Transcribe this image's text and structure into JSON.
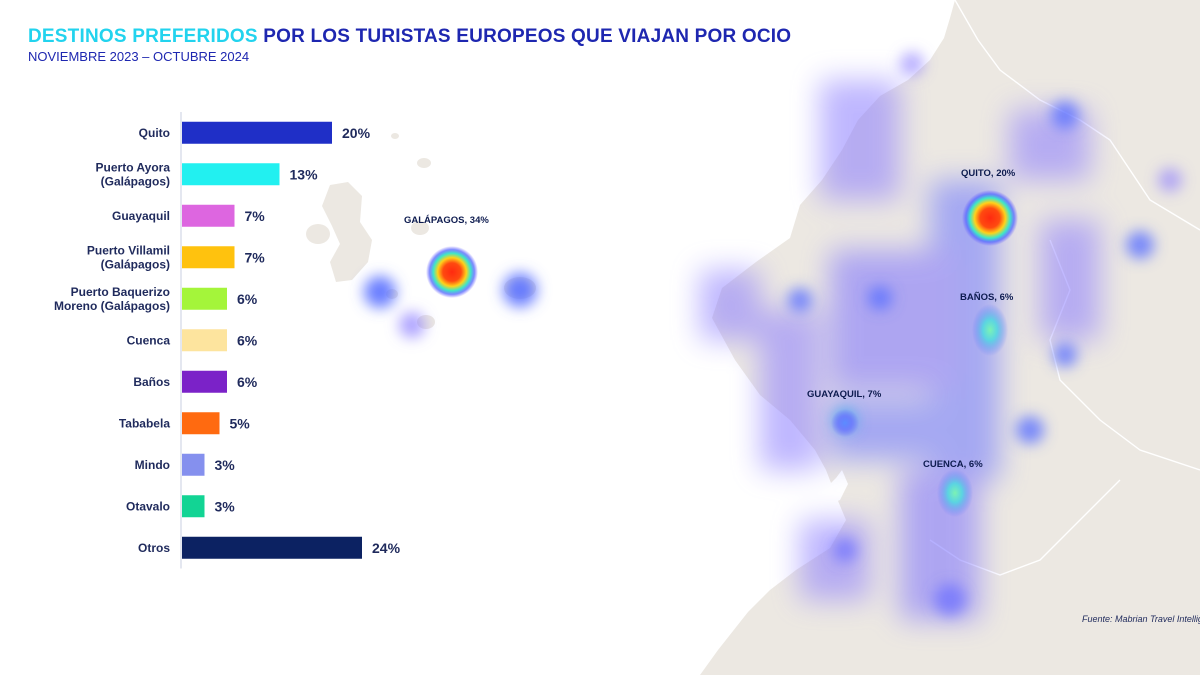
{
  "title": {
    "highlight": "DESTINOS PREFERIDOS",
    "rest": "POR LOS TURISTAS EUROPEOS QUE VIAJAN POR OCIO"
  },
  "subtitle": "NOVIEMBRE 2023 – OCTUBRE 2024",
  "colors": {
    "title_highlight": "#22d3ee",
    "title_main": "#1e27b0",
    "label_text": "#1f2a5c",
    "land": "#ece8e2"
  },
  "chart_data": {
    "type": "bar",
    "orientation": "horizontal",
    "categories": [
      [
        "Quito"
      ],
      [
        "Puerto Ayora",
        "(Galápagos)"
      ],
      [
        "Guayaquil"
      ],
      [
        "Puerto Villamil",
        "(Galápagos)"
      ],
      [
        "Puerto Baquerizo",
        "Moreno (Galápagos)"
      ],
      [
        "Cuenca"
      ],
      [
        "Baños"
      ],
      [
        "Tababela"
      ],
      [
        "Mindo"
      ],
      [
        "Otavalo"
      ],
      [
        "Otros"
      ]
    ],
    "values": [
      20,
      13,
      7,
      7,
      6,
      6,
      6,
      5,
      3,
      3,
      24
    ],
    "value_labels": [
      "20%",
      "13%",
      "7%",
      "7%",
      "6%",
      "6%",
      "6%",
      "5%",
      "3%",
      "3%",
      "24%"
    ],
    "colors": [
      "#1f2fc7",
      "#22f0f0",
      "#dd66e0",
      "#ffc20e",
      "#a4f53a",
      "#fde49e",
      "#7b22c8",
      "#ff6a10",
      "#8590ee",
      "#12d494",
      "#0c2262"
    ],
    "unit": "%"
  },
  "map": {
    "labels": [
      {
        "id": "galapagos",
        "text": "GALÁPAGOS, 34%"
      },
      {
        "id": "quito",
        "text": "QUITO, 20%"
      },
      {
        "id": "banos",
        "text": "BAÑOS, 6%"
      },
      {
        "id": "guayaquil",
        "text": "GUAYAQUIL, 7%"
      },
      {
        "id": "cuenca",
        "text": "CUENCA, 6%"
      }
    ]
  },
  "source": "Fuente: Mabrian Travel Intelligence"
}
